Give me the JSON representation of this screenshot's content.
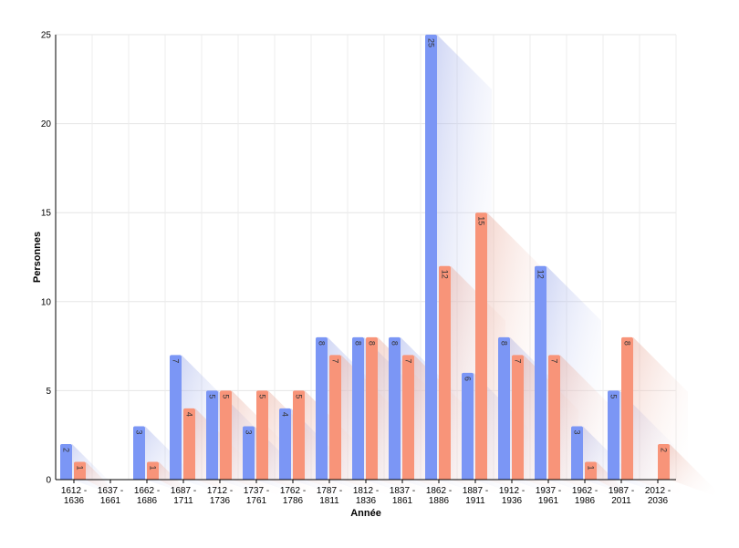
{
  "chart_data": {
    "type": "bar",
    "title": "",
    "xlabel": "Année",
    "ylabel": "Personnes",
    "ylim": [
      0,
      25
    ],
    "yticks": [
      0,
      5,
      10,
      15,
      20,
      25
    ],
    "grid": true,
    "categories": [
      [
        "1612 -",
        "1636"
      ],
      [
        "1637 -",
        "1661"
      ],
      [
        "1662 -",
        "1686"
      ],
      [
        "1687 -",
        "1711"
      ],
      [
        "1712 -",
        "1736"
      ],
      [
        "1737 -",
        "1761"
      ],
      [
        "1762 -",
        "1786"
      ],
      [
        "1787 -",
        "1811"
      ],
      [
        "1812 -",
        "1836"
      ],
      [
        "1837 -",
        "1861"
      ],
      [
        "1862 -",
        "1886"
      ],
      [
        "1887 -",
        "1911"
      ],
      [
        "1912 -",
        "1936"
      ],
      [
        "1937 -",
        "1961"
      ],
      [
        "1962 -",
        "1986"
      ],
      [
        "1987 -",
        "2011"
      ],
      [
        "2012 -",
        "2036"
      ]
    ],
    "series": [
      {
        "color": "#7b96f5",
        "values": [
          2,
          0,
          3,
          7,
          5,
          3,
          4,
          8,
          8,
          8,
          25,
          6,
          8,
          12,
          3,
          5,
          0
        ]
      },
      {
        "color": "#f89479",
        "values": [
          1,
          0,
          1,
          4,
          5,
          5,
          5,
          7,
          8,
          7,
          12,
          15,
          7,
          7,
          1,
          8,
          2
        ]
      }
    ]
  }
}
